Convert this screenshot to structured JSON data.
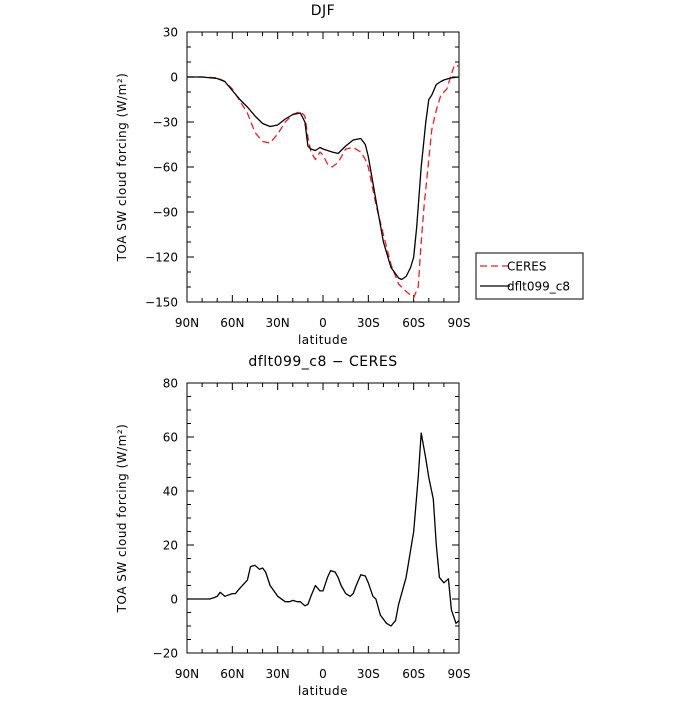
{
  "chart_data": [
    {
      "type": "line",
      "title": "DJF",
      "xlabel": "latitude",
      "ylabel": "TOA SW cloud forcing (W/m²)",
      "xlim": [
        90,
        -90
      ],
      "ylim": [
        -150,
        30
      ],
      "x_ticks": [
        90,
        60,
        30,
        0,
        -30,
        -60,
        -90
      ],
      "x_tick_labels": [
        "90N",
        "60N",
        "30N",
        "0",
        "30S",
        "60S",
        "90S"
      ],
      "y_ticks": [
        -150,
        -120,
        -90,
        -60,
        -30,
        0,
        30
      ],
      "y_tick_labels": [
        "−150",
        "−120",
        "−90",
        "−60",
        "−30",
        "0",
        "30"
      ],
      "legend": {
        "position": "right"
      },
      "series": [
        {
          "name": "CERES",
          "color": "#e8202a",
          "dash": "dashed",
          "x": [
            90,
            80,
            70,
            65,
            60,
            55,
            50,
            45,
            40,
            35,
            30,
            25,
            20,
            15,
            12,
            10,
            8,
            5,
            2,
            0,
            -3,
            -6,
            -10,
            -15,
            -20,
            -25,
            -28,
            -30,
            -35,
            -40,
            -45,
            -50,
            -55,
            -60,
            -63,
            -65,
            -67,
            -70,
            -72,
            -75,
            -78,
            -80,
            -82,
            -85,
            -87,
            -90
          ],
          "values": [
            0,
            0,
            -0.5,
            -3,
            -8,
            -16,
            -24,
            -37,
            -43,
            -44,
            -38,
            -30,
            -25,
            -23,
            -26,
            -40,
            -50,
            -55,
            -50,
            -52,
            -58,
            -60,
            -57,
            -48,
            -47,
            -50,
            -55,
            -60,
            -85,
            -105,
            -125,
            -138,
            -143,
            -147,
            -140,
            -110,
            -85,
            -55,
            -35,
            -22,
            -12,
            -10,
            -8,
            2,
            8,
            7
          ]
        },
        {
          "name": "dflt099_c8",
          "color": "#000000",
          "dash": "solid",
          "x": [
            90,
            80,
            70,
            65,
            60,
            55,
            50,
            45,
            40,
            35,
            30,
            25,
            20,
            15,
            12,
            10,
            8,
            5,
            2,
            0,
            -3,
            -6,
            -10,
            -15,
            -20,
            -25,
            -28,
            -30,
            -35,
            -40,
            -45,
            -50,
            -52,
            -55,
            -58,
            -60,
            -62,
            -65,
            -68,
            -70,
            -72,
            -75,
            -78,
            -80,
            -85,
            -90
          ],
          "values": [
            0,
            0,
            -1,
            -3,
            -9,
            -15,
            -20,
            -26,
            -31,
            -33,
            -32,
            -28,
            -25,
            -24,
            -30,
            -46,
            -48,
            -49,
            -47,
            -48,
            -49,
            -50,
            -51,
            -46,
            -42,
            -41,
            -45,
            -53,
            -82,
            -110,
            -127,
            -134,
            -135,
            -133,
            -127,
            -120,
            -100,
            -60,
            -30,
            -15,
            -12,
            -5,
            -3,
            -2,
            -0.5,
            0
          ]
        }
      ]
    },
    {
      "type": "line",
      "title": "dflt099_c8 − CERES",
      "xlabel": "latitude",
      "ylabel": "TOA SW cloud forcing (W/m²)",
      "xlim": [
        90,
        -90
      ],
      "ylim": [
        -20,
        80
      ],
      "x_ticks": [
        90,
        60,
        30,
        0,
        -30,
        -60,
        -90
      ],
      "x_tick_labels": [
        "90N",
        "60N",
        "30N",
        "0",
        "30S",
        "60S",
        "90S"
      ],
      "y_ticks": [
        -20,
        0,
        20,
        40,
        60,
        80
      ],
      "y_tick_labels": [
        "−20",
        "0",
        "20",
        "40",
        "60",
        "80"
      ],
      "series": [
        {
          "color": "#000000",
          "dash": "solid",
          "x": [
            90,
            80,
            75,
            72,
            70,
            68,
            65,
            60,
            58,
            55,
            50,
            48,
            45,
            42,
            40,
            38,
            35,
            30,
            25,
            22,
            20,
            17,
            15,
            12,
            10,
            8,
            5,
            2,
            0,
            -3,
            -5,
            -8,
            -10,
            -12,
            -15,
            -18,
            -20,
            -22,
            -25,
            -28,
            -30,
            -33,
            -35,
            -38,
            -42,
            -45,
            -48,
            -50,
            -55,
            -60,
            -63,
            -65,
            -68,
            -70,
            -73,
            -75,
            -77,
            -80,
            -83,
            -85,
            -88,
            -90
          ],
          "values": [
            0,
            0,
            0,
            0.5,
            1,
            2.5,
            1,
            2,
            2,
            4,
            7,
            12,
            12.5,
            11,
            11.5,
            10,
            5,
            1,
            -1,
            -1,
            -0.5,
            -1,
            -1,
            -2.5,
            -2,
            1,
            5,
            3,
            3,
            8,
            10.5,
            10,
            8,
            5,
            2,
            1,
            2,
            5,
            9,
            8.5,
            6,
            1,
            0,
            -6,
            -9,
            -10,
            -8,
            -2,
            8,
            25,
            45,
            61.5,
            52,
            45,
            37,
            20,
            8,
            6,
            7.5,
            -4,
            -9,
            -8
          ]
        }
      ]
    }
  ]
}
